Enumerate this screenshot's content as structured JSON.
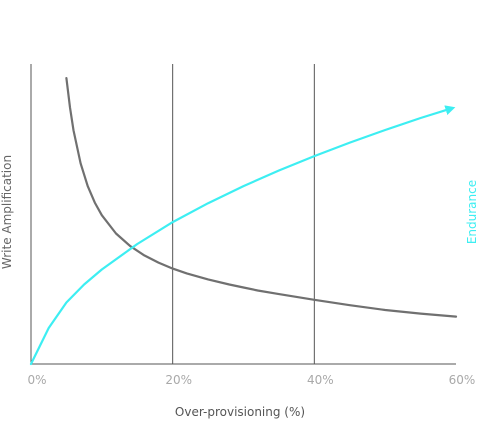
{
  "chart_data": {
    "type": "line",
    "xlabel": "Over-provisioning (%)",
    "x_ticks": [
      "0%",
      "20%",
      "40%",
      "60%"
    ],
    "xlim": [
      0,
      60
    ],
    "grid_x": [
      20,
      40
    ],
    "series": [
      {
        "name": "Write Amplification",
        "axis": "left",
        "color": "#707070",
        "ylim": [
          0,
          1
        ],
        "x": [
          5,
          5.5,
          6,
          7,
          8,
          9,
          10,
          12,
          14,
          16,
          18,
          20,
          22,
          25,
          28,
          30,
          32,
          35,
          40,
          45,
          50,
          55,
          60
        ],
        "values": [
          0.953,
          0.855,
          0.779,
          0.669,
          0.593,
          0.538,
          0.496,
          0.435,
          0.393,
          0.362,
          0.338,
          0.318,
          0.302,
          0.282,
          0.265,
          0.255,
          0.245,
          0.233,
          0.214,
          0.196,
          0.18,
          0.168,
          0.158
        ]
      },
      {
        "name": "Endurance",
        "axis": "right",
        "color": "#3deef2",
        "ylim": [
          0,
          1
        ],
        "arrow": true,
        "x": [
          0,
          2.5,
          5,
          7.5,
          10,
          15,
          20,
          25,
          30,
          35,
          40,
          45,
          50,
          55,
          59.5
        ],
        "values": [
          0.0,
          0.12,
          0.205,
          0.265,
          0.315,
          0.4,
          0.473,
          0.536,
          0.593,
          0.645,
          0.693,
          0.738,
          0.78,
          0.82,
          0.853
        ]
      }
    ],
    "colors": {
      "axis": "#555555",
      "grid": "#555555",
      "tick_label": "#a9a9a9",
      "xlabel": "#555555",
      "left_label": "#666666",
      "right_label": "#3deef2"
    }
  }
}
